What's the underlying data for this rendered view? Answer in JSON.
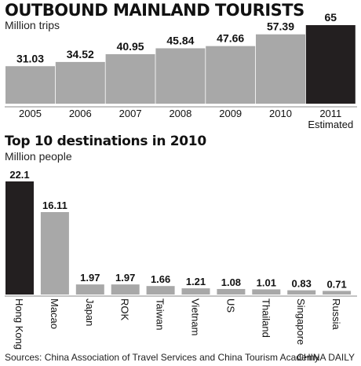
{
  "chart_data": [
    {
      "type": "bar",
      "title": "OUTBOUND MAINLAND TOURISTS",
      "subtitle": "Million trips",
      "categories": [
        "2005",
        "2006",
        "2007",
        "2008",
        "2009",
        "2010",
        "2011"
      ],
      "category_sublabels": [
        "",
        "",
        "",
        "",
        "",
        "",
        "Estimated"
      ],
      "values": [
        31.03,
        34.52,
        40.95,
        45.84,
        47.66,
        57.39,
        65
      ],
      "value_labels": [
        "31.03",
        "34.52",
        "40.95",
        "45.84",
        "47.66",
        "57.39",
        "65"
      ],
      "highlight_index": 6,
      "colors": {
        "bar": "#a8a8a8",
        "highlight": "#231f20"
      }
    },
    {
      "type": "bar",
      "title": "Top 10 destinations in 2010",
      "subtitle": "Million people",
      "categories": [
        "Hong Kong",
        "Macao",
        "Japan",
        "ROK",
        "Taiwan",
        "Vietnam",
        "US",
        "Thailand",
        "Singapore",
        "Russia"
      ],
      "values": [
        22.1,
        16.11,
        1.97,
        1.97,
        1.66,
        1.21,
        1.08,
        1.01,
        0.83,
        0.71
      ],
      "value_labels": [
        "22.1",
        "16.11",
        "1.97",
        "1.97",
        "1.66",
        "1.21",
        "1.08",
        "1.01",
        "0.83",
        "0.71"
      ],
      "highlight_index": 0,
      "colors": {
        "bar": "#a8a8a8",
        "highlight": "#231f20"
      }
    }
  ],
  "footer": {
    "source": "Sources: China Association of Travel Services and China Tourism Academy",
    "credit": "CHINA DAILY"
  }
}
